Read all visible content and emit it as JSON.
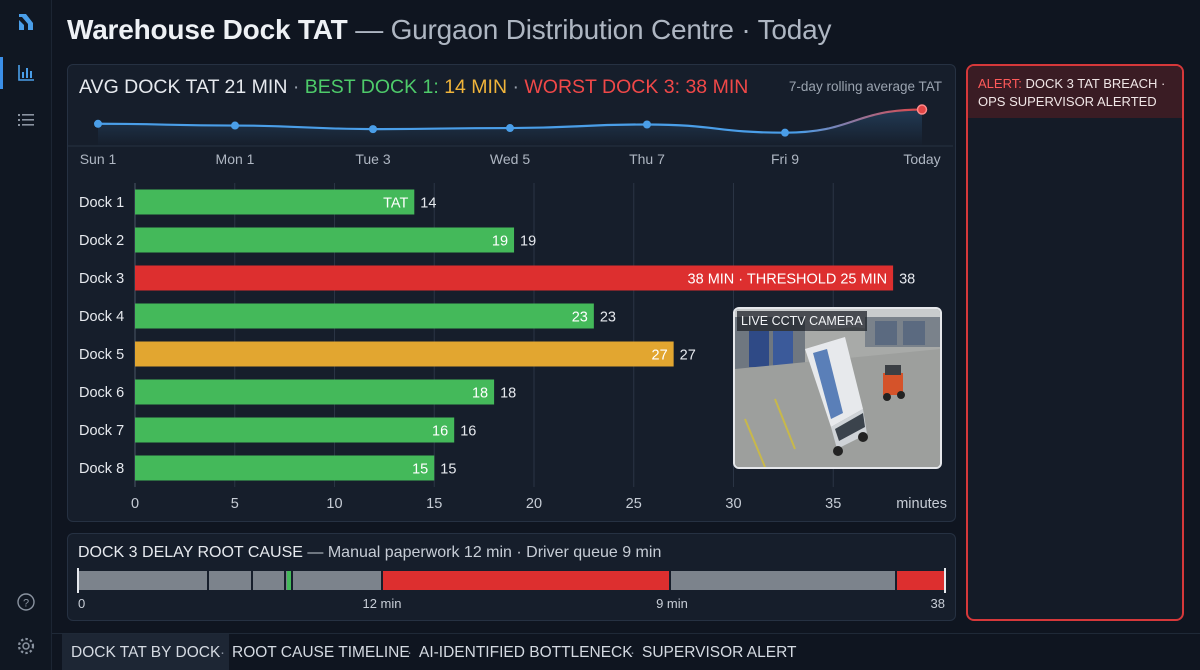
{
  "title": {
    "main": "Warehouse Dock TAT",
    "sub": "— Gurgaon Distribution Centre · Today"
  },
  "rail": {
    "icons": [
      "logo-icon",
      "chart-icon",
      "list-icon",
      "help-icon",
      "settings-icon"
    ]
  },
  "kpi": {
    "avg": "AVG DOCK TAT 21 MIN",
    "sep": "·",
    "best_label": "BEST DOCK 1:",
    "best_value": "14 MIN",
    "worst": "WORST DOCK 3: 38 MIN"
  },
  "trend": {
    "caption": "7-day rolling average TAT",
    "days": [
      "Sun 1",
      "Mon 1",
      "Tue 3",
      "Wed 5",
      "Thu 7",
      "Fri 9",
      "Today"
    ],
    "values": [
      22,
      21.5,
      20.5,
      20.8,
      21.8,
      19.5,
      26
    ]
  },
  "chart_data": {
    "type": "bar",
    "orientation": "horizontal",
    "categories": [
      "Dock 1",
      "Dock 2",
      "Dock 3",
      "Dock 4",
      "Dock 5",
      "Dock 6",
      "Dock 7",
      "Dock 8"
    ],
    "values": [
      14,
      19,
      38,
      23,
      27,
      18,
      16,
      15
    ],
    "inner_labels": [
      "TAT",
      "19",
      "38 MIN · THRESHOLD 25 MIN",
      "23",
      "27",
      "18",
      "16",
      "15"
    ],
    "statuses": [
      "ok",
      "ok",
      "breach",
      "ok",
      "warn",
      "ok",
      "ok",
      "ok"
    ],
    "xlabel": "minutes",
    "xticks": [
      0,
      5,
      10,
      15,
      20,
      25,
      30,
      35
    ],
    "xlim": [
      0,
      40
    ],
    "grid": true
  },
  "colors": {
    "ok": "#44b95a",
    "warn": "#e2a630",
    "breach": "#dd2f2f",
    "trend": "#4a9ee8",
    "trend_alert": "#e24646"
  },
  "cctv": {
    "label": "LIVE CCTV CAMERA"
  },
  "root_cause": {
    "title": "DOCK 3 DELAY ROOT CAUSE",
    "detail": "— Manual paperwork 12 min · Driver queue 9 min",
    "markers": [
      "0",
      "12 min",
      "9 min",
      "38"
    ]
  },
  "alert": {
    "tag": "ALERT:",
    "text": "DOCK 3 TAT BREACH · OPS SUPERVISOR ALERTED"
  },
  "nav": {
    "items": [
      "DOCK TAT BY DOCK",
      "ROOT CAUSE TIMELINE",
      "AI-IDENTIFIED BOTTLENECK",
      "SUPERVISOR ALERT"
    ],
    "sep": "·"
  }
}
